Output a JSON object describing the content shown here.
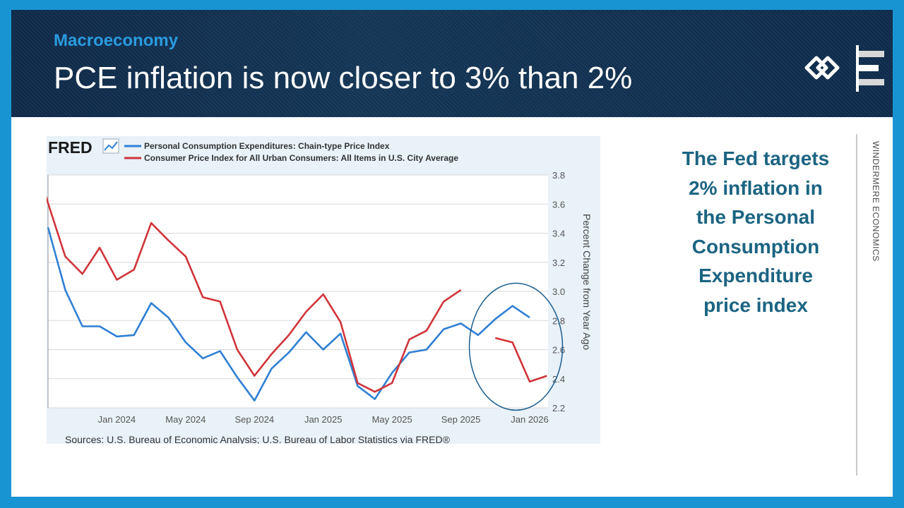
{
  "header": {
    "kicker": "Macroeconomy",
    "title": "PCE inflation is now closer to 3% than 2%"
  },
  "side_panel": {
    "lines": [
      "The Fed targets",
      "2% inflation in",
      "the Personal",
      "Consumption",
      "Expenditure",
      "price index"
    ],
    "brand_vertical": "WINDERMERE ECONOMICS"
  },
  "colors": {
    "accent": "#1994d3",
    "header_bg": "#0f2a4a",
    "kicker": "#2a9be0",
    "side_text": "#1c6482",
    "pce": "#2f7fd3",
    "cpi": "#d0343a",
    "circle": "#1d5f8f"
  },
  "chart_data": {
    "type": "line",
    "brand": "FRED",
    "ylabel": "Percent Change from Year Ago",
    "ylim": [
      2.2,
      3.8
    ],
    "yticks": [
      "3.8",
      "3.6",
      "3.4",
      "3.2",
      "3.0",
      "2.8",
      "2.6",
      "2.4",
      "2.2"
    ],
    "xlim": [
      0,
      28
    ],
    "xticks": [
      {
        "label": "Jan 2024",
        "x": 4
      },
      {
        "label": "May 2024",
        "x": 8
      },
      {
        "label": "Sep 2024",
        "x": 12
      },
      {
        "label": "Jan 2025",
        "x": 16
      },
      {
        "label": "May 2025",
        "x": 20
      },
      {
        "label": "Sep 2025",
        "x": 24
      },
      {
        "label": "Jan 2026",
        "x": 28
      }
    ],
    "source": "Sources: U.S. Bureau of Economic Analysis; U.S. Bureau of Labor Statistics via FRED®",
    "annotation": "ellipse highlighting the most recent months",
    "series": [
      {
        "name": "Personal Consumption Expenditures: Chain-type Price Index",
        "color": "#2f7fd3",
        "points": [
          [
            0,
            3.44
          ],
          [
            1,
            3.01
          ],
          [
            2,
            2.76
          ],
          [
            3,
            2.76
          ],
          [
            4,
            2.69
          ],
          [
            5,
            2.7
          ],
          [
            6,
            2.92
          ],
          [
            7,
            2.82
          ],
          [
            8,
            2.65
          ],
          [
            9,
            2.54
          ],
          [
            10,
            2.59
          ],
          [
            11,
            2.41
          ],
          [
            12,
            2.25
          ],
          [
            13,
            2.47
          ],
          [
            14,
            2.58
          ],
          [
            15,
            2.72
          ],
          [
            16,
            2.6
          ],
          [
            17,
            2.71
          ],
          [
            18,
            2.35
          ],
          [
            19,
            2.26
          ],
          [
            20,
            2.44
          ],
          [
            21,
            2.58
          ],
          [
            22,
            2.6
          ],
          [
            23,
            2.74
          ],
          [
            24,
            2.78
          ],
          [
            25,
            2.7
          ],
          [
            26,
            2.81
          ],
          [
            27,
            2.9
          ],
          [
            28,
            2.82
          ]
        ]
      },
      {
        "name": "Consumer Price Index for All Urban Consumers: All Items in U.S. City Average",
        "color": "#d0343a",
        "segments": [
          [
            [
              -0.2,
              3.68
            ],
            [
              1,
              3.24
            ],
            [
              2,
              3.12
            ],
            [
              3,
              3.3
            ],
            [
              4,
              3.08
            ],
            [
              5,
              3.15
            ],
            [
              6,
              3.47
            ],
            [
              7,
              3.35
            ],
            [
              8,
              3.24
            ],
            [
              9,
              2.96
            ],
            [
              10,
              2.93
            ],
            [
              11,
              2.6
            ],
            [
              12,
              2.42
            ],
            [
              13,
              2.57
            ],
            [
              14,
              2.7
            ],
            [
              15,
              2.86
            ],
            [
              16,
              2.98
            ],
            [
              17,
              2.79
            ],
            [
              18,
              2.37
            ],
            [
              19,
              2.31
            ],
            [
              20,
              2.37
            ],
            [
              21,
              2.67
            ],
            [
              22,
              2.73
            ],
            [
              23,
              2.93
            ],
            [
              24,
              3.01
            ]
          ],
          [
            [
              26,
              2.68
            ],
            [
              27,
              2.65
            ],
            [
              28,
              2.38
            ],
            [
              29,
              2.42
            ]
          ]
        ]
      }
    ]
  }
}
